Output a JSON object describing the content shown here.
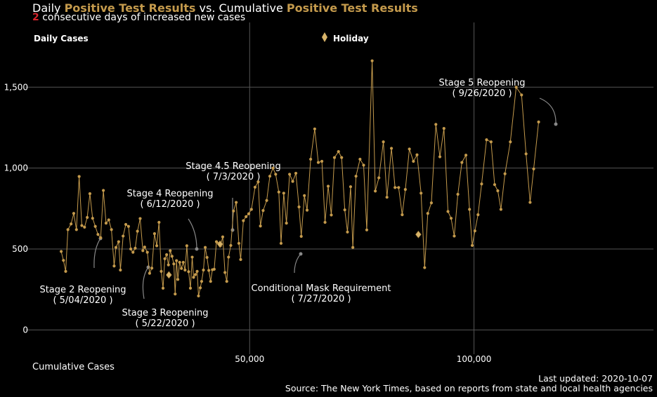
{
  "header": {
    "title_prefix": "Daily",
    "title_metric_1": "Positive Test Results",
    "title_mid": "vs. Cumulative",
    "title_metric_2": "Positive Test Results",
    "streak_count": "2",
    "streak_text": "consecutive days of increased new cases"
  },
  "footer": {
    "updated": "Last updated: 2020-10-07",
    "source": "Source: The New York Times, based on reports from state and local health agencies"
  },
  "colors": {
    "background": "#000000",
    "series": "#c49a4c",
    "streak": "#d6242c",
    "grid": "#555555",
    "text": "#ffffff"
  },
  "chart_data": {
    "type": "line",
    "ylabel": "Daily Cases",
    "xlabel": "Cumulative Cases",
    "legend": {
      "label": "Holiday",
      "marker": "diamond",
      "placement": "top-center"
    },
    "xlim": [
      0,
      140000
    ],
    "ylim": [
      -150,
      1900
    ],
    "x_ticks": [
      50000,
      100000
    ],
    "x_tick_labels": [
      "50,000",
      "100,000"
    ],
    "y_ticks": [
      0,
      500,
      1000,
      1500
    ],
    "y_tick_labels": [
      "0",
      "500",
      "1,000",
      "1,500"
    ],
    "grid": "major",
    "series": [
      {
        "marker": "circle",
        "points": [
          [
            8000,
            485
          ],
          [
            8500,
            430
          ],
          [
            9000,
            362
          ],
          [
            9500,
            620
          ],
          [
            10200,
            655
          ],
          [
            10800,
            720
          ],
          [
            11400,
            620
          ],
          [
            12000,
            948
          ],
          [
            12600,
            645
          ],
          [
            13200,
            635
          ],
          [
            13800,
            695
          ],
          [
            14400,
            842
          ],
          [
            15000,
            690
          ],
          [
            15600,
            640
          ],
          [
            16200,
            590
          ],
          [
            16800,
            570
          ],
          [
            17400,
            862
          ],
          [
            18000,
            660
          ],
          [
            18600,
            680
          ],
          [
            19200,
            620
          ],
          [
            19800,
            395
          ],
          [
            20200,
            510
          ],
          [
            20800,
            545
          ],
          [
            21200,
            370
          ],
          [
            21800,
            580
          ],
          [
            22400,
            652
          ],
          [
            23000,
            640
          ],
          [
            23500,
            500
          ],
          [
            24000,
            480
          ],
          [
            24500,
            505
          ],
          [
            25000,
            610
          ],
          [
            25600,
            688
          ],
          [
            26200,
            490
          ],
          [
            26600,
            512
          ],
          [
            27200,
            480
          ],
          [
            27700,
            350
          ],
          [
            28200,
            382
          ],
          [
            28800,
            595
          ],
          [
            29300,
            520
          ],
          [
            29800,
            665
          ],
          [
            30300,
            362
          ],
          [
            30700,
            258
          ],
          [
            31100,
            440
          ],
          [
            31500,
            465
          ],
          [
            31900,
            402
          ],
          [
            32300,
            490
          ],
          [
            32700,
            455
          ],
          [
            33100,
            408
          ],
          [
            33400,
            222
          ],
          [
            33700,
            428
          ],
          [
            34000,
            312
          ],
          [
            34400,
            418
          ],
          [
            34800,
            380
          ],
          [
            35200,
            418
          ],
          [
            35600,
            370
          ],
          [
            36000,
            520
          ],
          [
            36400,
            360
          ],
          [
            36800,
            258
          ],
          [
            37200,
            450
          ],
          [
            37500,
            325
          ],
          [
            37900,
            342
          ],
          [
            38300,
            362
          ],
          [
            38600,
            210
          ],
          [
            39000,
            260
          ],
          [
            39300,
            300
          ],
          [
            39700,
            370
          ],
          [
            40100,
            510
          ],
          [
            40500,
            448
          ],
          [
            40900,
            368
          ],
          [
            41300,
            300
          ],
          [
            41700,
            372
          ],
          [
            42100,
            375
          ],
          [
            42600,
            545
          ],
          [
            43000,
            535
          ],
          [
            43500,
            520
          ],
          [
            44000,
            575
          ],
          [
            44500,
            355
          ],
          [
            44900,
            300
          ],
          [
            45300,
            450
          ],
          [
            45800,
            522
          ],
          [
            46400,
            735
          ],
          [
            47000,
            788
          ],
          [
            47600,
            535
          ],
          [
            48000,
            435
          ],
          [
            48600,
            675
          ],
          [
            49200,
            700
          ],
          [
            49800,
            718
          ],
          [
            50400,
            745
          ],
          [
            51200,
            882
          ],
          [
            51900,
            915
          ],
          [
            52400,
            642
          ],
          [
            53000,
            738
          ],
          [
            53800,
            800
          ],
          [
            54500,
            950
          ],
          [
            55200,
            1000
          ],
          [
            55800,
            962
          ],
          [
            56500,
            852
          ],
          [
            57000,
            535
          ],
          [
            57600,
            845
          ],
          [
            58200,
            660
          ],
          [
            58900,
            962
          ],
          [
            59600,
            918
          ],
          [
            60300,
            968
          ],
          [
            61000,
            760
          ],
          [
            61500,
            578
          ],
          [
            62200,
            830
          ],
          [
            62800,
            740
          ],
          [
            63600,
            1055
          ],
          [
            64500,
            1242
          ],
          [
            65300,
            1035
          ],
          [
            66100,
            1042
          ],
          [
            66800,
            665
          ],
          [
            67500,
            888
          ],
          [
            68200,
            710
          ],
          [
            68900,
            1065
          ],
          [
            69800,
            1102
          ],
          [
            70500,
            1065
          ],
          [
            71200,
            742
          ],
          [
            71800,
            605
          ],
          [
            72500,
            885
          ],
          [
            73000,
            510
          ],
          [
            73700,
            950
          ],
          [
            74600,
            1055
          ],
          [
            75400,
            1018
          ],
          [
            76100,
            618
          ],
          [
            77300,
            1663
          ],
          [
            78000,
            858
          ],
          [
            78800,
            940
          ],
          [
            79800,
            1162
          ],
          [
            80600,
            820
          ],
          [
            81600,
            1122
          ],
          [
            82400,
            880
          ],
          [
            83200,
            880
          ],
          [
            84000,
            712
          ],
          [
            84700,
            868
          ],
          [
            85600,
            1118
          ],
          [
            86500,
            1042
          ],
          [
            87300,
            1082
          ],
          [
            88200,
            845
          ],
          [
            89000,
            385
          ],
          [
            89700,
            720
          ],
          [
            90500,
            785
          ],
          [
            91500,
            1270
          ],
          [
            92400,
            1070
          ],
          [
            93300,
            1245
          ],
          [
            94200,
            732
          ],
          [
            94900,
            690
          ],
          [
            95600,
            580
          ],
          [
            96400,
            838
          ],
          [
            97300,
            1035
          ],
          [
            98200,
            1080
          ],
          [
            99000,
            745
          ],
          [
            99600,
            522
          ],
          [
            100200,
            612
          ],
          [
            100900,
            712
          ],
          [
            101700,
            902
          ],
          [
            102800,
            1175
          ],
          [
            103800,
            1162
          ],
          [
            104600,
            898
          ],
          [
            105300,
            860
          ],
          [
            106000,
            745
          ],
          [
            106900,
            965
          ],
          [
            108100,
            1162
          ],
          [
            109400,
            1500
          ],
          [
            110600,
            1452
          ],
          [
            111600,
            1088
          ],
          [
            112500,
            788
          ],
          [
            113300,
            995
          ],
          [
            114400,
            1285
          ]
        ]
      }
    ],
    "holidays": [
      [
        32000,
        340
      ],
      [
        43400,
        530
      ],
      [
        87600,
        590
      ]
    ],
    "annotations": [
      {
        "lines": [
          "Stage 2 Reopening",
          "( 5/04/2020 )"
        ]
      },
      {
        "lines": [
          "Stage 3 Reopening",
          "( 5/22/2020 )"
        ]
      },
      {
        "lines": [
          "Stage 4 Reopening",
          "( 6/12/2020 )"
        ]
      },
      {
        "lines": [
          "Stage 4.5 Reopening",
          "( 7/3/2020 )"
        ]
      },
      {
        "lines": [
          "Conditional Mask Requirement",
          "( 7/27/2020 )"
        ]
      },
      {
        "lines": [
          "Stage 5 Reopening",
          "( 9/26/2020 )"
        ]
      }
    ]
  }
}
